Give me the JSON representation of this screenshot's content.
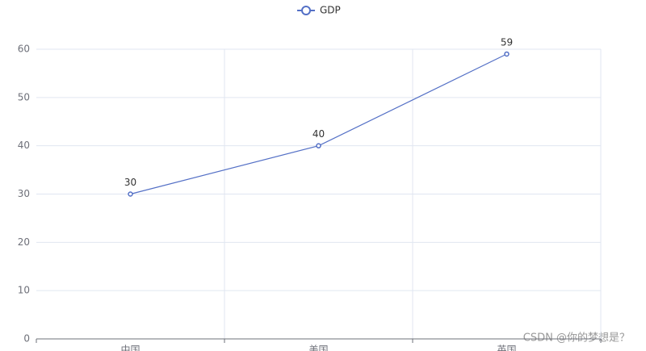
{
  "chart_data": {
    "type": "line",
    "categories": [
      "中国",
      "美国",
      "英国"
    ],
    "series": [
      {
        "name": "GDP",
        "color": "#5470c6",
        "values": [
          30,
          40,
          59
        ]
      }
    ],
    "ylim": [
      0,
      60
    ],
    "yticks": [
      0,
      10,
      20,
      30,
      40,
      50,
      60
    ],
    "grid": true,
    "legend": "top"
  },
  "watermark": "CSDN @你的梦想是？"
}
